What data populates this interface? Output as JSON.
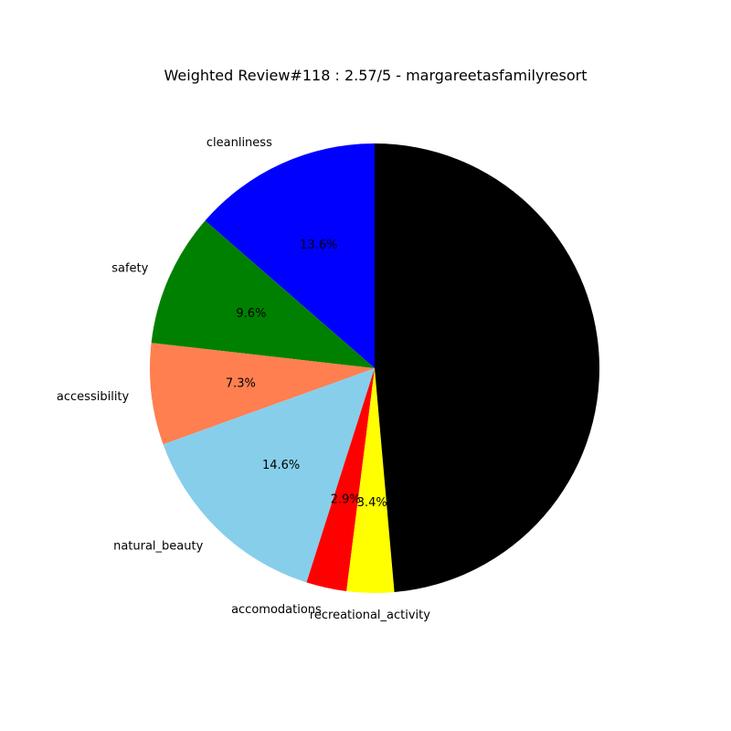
{
  "chart_data": {
    "type": "pie",
    "title": "Weighted Review#118 : 2.57/5 - margareetasfamilyresort",
    "start_angle_deg": 90,
    "direction": "counterclockwise",
    "slices": [
      {
        "label": "cleanliness",
        "value": 13.6,
        "pct_text": "13.6%",
        "color": "#0000ff"
      },
      {
        "label": "safety",
        "value": 9.6,
        "pct_text": "9.6%",
        "color": "#008000"
      },
      {
        "label": "accessibility",
        "value": 7.3,
        "pct_text": "7.3%",
        "color": "#ff7f50"
      },
      {
        "label": "natural_beauty",
        "value": 14.6,
        "pct_text": "14.6%",
        "color": "#87ceeb"
      },
      {
        "label": "accomodations",
        "value": 2.9,
        "pct_text": "2.9%",
        "color": "#ff0000"
      },
      {
        "label": "recreational_activity",
        "value": 3.4,
        "pct_text": "3.4%",
        "color": "#ffff00"
      },
      {
        "label": "",
        "value": 48.6,
        "pct_text": "",
        "color": "#000000"
      }
    ]
  }
}
